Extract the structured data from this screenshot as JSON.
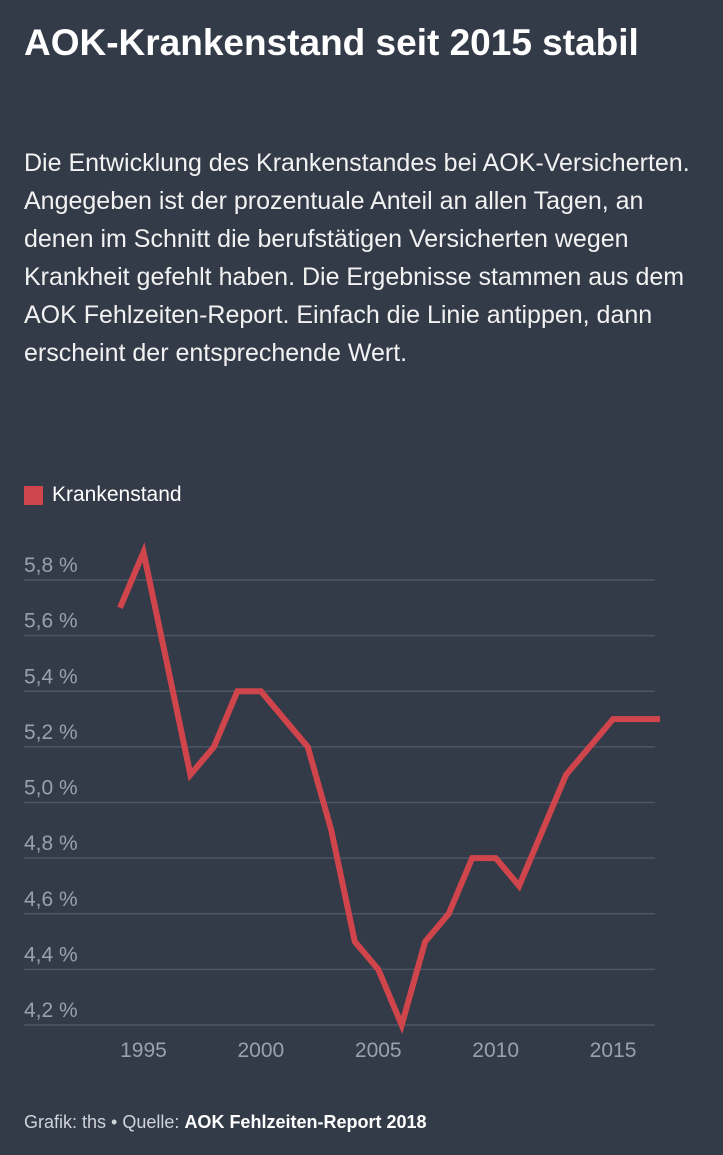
{
  "title": "AOK-Krankenstand seit 2015 stabil",
  "subtitle": "Die Entwicklung des Krankenstandes bei AOK-Versicherten. Angegeben ist der prozentuale Anteil an allen Tagen, an denen im Schnitt die berufstätigen Versicherten wegen Krankheit gefehlt haben. Die Ergebnisse stammen aus dem AOK Fehlzeiten-Report. Einfach die Linie antippen, dann erscheint der entsprechende Wert.",
  "footer": {
    "credit": "Grafik: ths",
    "separator": "•",
    "source_label": "Quelle:",
    "source": "AOK Fehlzeiten-Report 2018"
  },
  "colors": {
    "background": "#333a48",
    "series": "#d0454b",
    "grid": "#4e5564",
    "tick": "#9aa1ac"
  },
  "chart_data": {
    "type": "line",
    "title": "AOK-Krankenstand seit 2015 stabil",
    "xlabel": "",
    "ylabel": "",
    "xlim": [
      1994,
      2017
    ],
    "ylim": [
      4.2,
      5.8
    ],
    "y_ticks": [
      4.2,
      4.4,
      4.6,
      4.8,
      5.0,
      5.2,
      5.4,
      5.6,
      5.8
    ],
    "y_tick_labels": [
      "4,2 %",
      "4,4 %",
      "4,6 %",
      "4,8 %",
      "5,0 %",
      "5,2 %",
      "5,4 %",
      "5,6 %",
      "5,8 %"
    ],
    "x_ticks": [
      1995,
      2000,
      2005,
      2010,
      2015
    ],
    "x_tick_labels": [
      "1995",
      "2000",
      "2005",
      "2010",
      "2015"
    ],
    "grid": "horizontal",
    "legend": "top-left",
    "series": [
      {
        "name": "Krankenstand",
        "x": [
          1994,
          1995,
          1996,
          1997,
          1998,
          1999,
          2000,
          2001,
          2002,
          2003,
          2004,
          2005,
          2006,
          2007,
          2008,
          2009,
          2010,
          2011,
          2012,
          2013,
          2014,
          2015,
          2016,
          2017
        ],
        "y": [
          5.7,
          5.9,
          5.5,
          5.1,
          5.2,
          5.4,
          5.4,
          5.3,
          5.2,
          4.9,
          4.5,
          4.4,
          4.2,
          4.5,
          4.6,
          4.8,
          4.8,
          4.7,
          4.9,
          5.1,
          5.2,
          5.3,
          5.3,
          5.3
        ]
      }
    ]
  }
}
